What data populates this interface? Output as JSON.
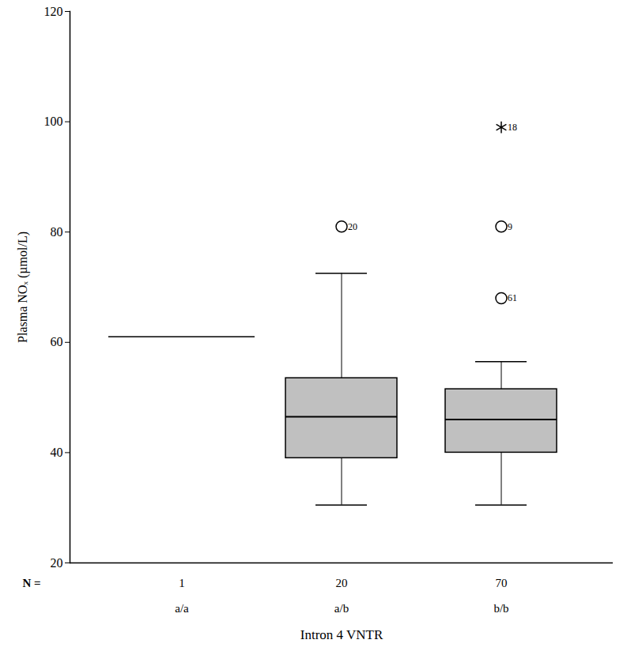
{
  "chart_data": {
    "type": "box",
    "ylabel": "Plasma NOₓ (µmol/L)",
    "xlabel": "Intron 4 VNTR",
    "n_label": "N =",
    "categories": [
      "a/a",
      "a/b",
      "b/b"
    ],
    "n": [
      1,
      20,
      70
    ],
    "boxes": [
      {
        "min": 61,
        "q1": 61,
        "median": 61,
        "q3": 61,
        "max": 61
      },
      {
        "min": 30.5,
        "q1": 39,
        "median": 46.5,
        "q3": 53.5,
        "max": 72.5
      },
      {
        "min": 30.5,
        "q1": 40,
        "median": 46,
        "q3": 51.5,
        "max": 56.5
      }
    ],
    "outliers": [
      {
        "category": "a/b",
        "value": 81,
        "label": "20",
        "marker": "circle"
      },
      {
        "category": "b/b",
        "value": 99,
        "label": "18",
        "marker": "asterisk"
      },
      {
        "category": "b/b",
        "value": 81,
        "label": "9",
        "marker": "circle"
      },
      {
        "category": "b/b",
        "value": 68,
        "label": "61",
        "marker": "circle"
      }
    ],
    "color": "#c0c0c0",
    "ylim": [
      20,
      120
    ],
    "yticks": [
      20,
      40,
      60,
      80,
      100,
      120
    ],
    "grid": false
  }
}
